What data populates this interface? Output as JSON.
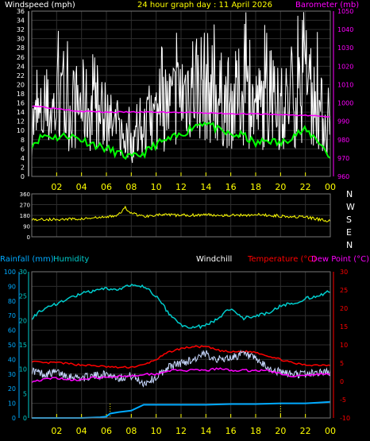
{
  "header": {
    "windspeed_label": "Windspeed (mph)",
    "date_title": "24 hour graph day : 11 April 2026",
    "barometer_label": "Barometer (mb)"
  },
  "middle": {
    "direction_labels": [
      "N",
      "W",
      "S",
      "E",
      "N"
    ]
  },
  "bottom_header": {
    "rainfall_label": "Rainfall (mm)",
    "humidity_label": "Humidity",
    "windchill_label": "Windchill",
    "temperature_label": "Temperature (°C)",
    "dewpoint_label": "Dew Point (°C)"
  },
  "colors": {
    "background": "#000000",
    "grid": "#2e2e2e",
    "hour_ticks": "#ffff00",
    "windspeed": "#ffffff",
    "wind_average": "#00ff00",
    "barometer": "#ff00ff",
    "direction": "#ffff00",
    "rainfall": "#00aaff",
    "humidity": "#00cccc",
    "windchill": "#c8d8ff",
    "temperature": "#ff0000",
    "dewpoint": "#ff00ff",
    "rain_axis": "#00aaff",
    "humidity_axis": "#00cccc",
    "temp_axis": "#ff0000"
  },
  "chart_data": [
    {
      "type": "line",
      "id": "wind_baro",
      "x_ticks": [
        "02",
        "04",
        "06",
        "08",
        "10",
        "12",
        "14",
        "16",
        "18",
        "20",
        "22",
        "00"
      ],
      "left_axis": {
        "label": "Windspeed (mph)",
        "ticks": [
          0,
          2,
          4,
          6,
          8,
          10,
          12,
          14,
          16,
          18,
          20,
          22,
          24,
          26,
          28,
          30,
          32,
          34,
          36
        ],
        "ylim": [
          0,
          36
        ]
      },
      "right_axis": {
        "label": "Barometer (mb)",
        "ticks": [
          960,
          970,
          980,
          990,
          1000,
          1010,
          1020,
          1030,
          1040,
          1050
        ],
        "ylim": [
          960,
          1050
        ]
      },
      "series": [
        {
          "name": "Windspeed (mph)",
          "axis": "left",
          "color": "#ffffff",
          "x": [
            0,
            1,
            2,
            3,
            4,
            5,
            6,
            7,
            8,
            9,
            10,
            11,
            12,
            13,
            14,
            15,
            16,
            17,
            18,
            19,
            20,
            21,
            22,
            23,
            24
          ],
          "y": [
            12,
            14,
            16,
            15,
            17,
            14,
            13,
            10,
            8,
            10,
            14,
            16,
            19,
            22,
            21,
            18,
            17,
            19,
            16,
            17,
            15,
            18,
            20,
            16,
            10
          ]
        },
        {
          "axis": "left",
          "color": "#00ff00",
          "x": [
            0,
            1,
            2,
            3,
            4,
            5,
            6,
            7,
            8,
            9,
            10,
            11,
            12,
            13,
            14,
            15,
            16,
            17,
            18,
            19,
            20,
            21,
            22,
            23,
            24
          ],
          "y": [
            7,
            9,
            8.5,
            9,
            8,
            7,
            6,
            5,
            4,
            5,
            7,
            8,
            9,
            11,
            12,
            10,
            9,
            9,
            7,
            8,
            7,
            9,
            10,
            8,
            4
          ]
        },
        {
          "name": "Barometer (mb)",
          "axis": "right",
          "color": "#ff00ff",
          "x": [
            0,
            2,
            4,
            6,
            8,
            10,
            12,
            14,
            16,
            18,
            20,
            22,
            24
          ],
          "y": [
            998.5,
            997,
            995.5,
            995,
            995,
            995,
            994.8,
            994.5,
            994.2,
            994,
            993.6,
            993.2,
            992.5
          ]
        }
      ]
    },
    {
      "type": "line",
      "id": "direction",
      "left_axis": {
        "ticks": [
          0,
          90,
          180,
          270,
          360
        ],
        "ylim": [
          0,
          360
        ]
      },
      "right_labels": [
        "N",
        "W",
        "S",
        "E",
        "N"
      ],
      "series": [
        {
          "axis": "left",
          "color": "#ffff00",
          "x": [
            0,
            2,
            4,
            6,
            7,
            7.5,
            8,
            9,
            10,
            12,
            14,
            16,
            18,
            20,
            22,
            24
          ],
          "y": [
            145,
            145,
            150,
            165,
            185,
            245,
            200,
            170,
            185,
            180,
            185,
            180,
            185,
            175,
            165,
            130
          ]
        }
      ]
    },
    {
      "type": "line",
      "id": "rain_humidity_temp",
      "x_ticks": [
        "02",
        "04",
        "06",
        "08",
        "10",
        "12",
        "14",
        "16",
        "18",
        "20",
        "22",
        "00"
      ],
      "rain_axis": {
        "label": "Rainfall (mm)",
        "ticks": [
          0,
          10,
          20,
          30,
          40,
          50,
          60,
          70,
          80,
          90,
          100
        ],
        "ylim": [
          0,
          100
        ]
      },
      "humidity_axis": {
        "label": "Humidity",
        "ticks": [
          0,
          5,
          10,
          15,
          20,
          25,
          30
        ],
        "ylim": [
          0,
          30
        ]
      },
      "temp_axis": {
        "label": "Temperature (°C)",
        "ticks": [
          -10,
          -5,
          0,
          5,
          10,
          15,
          20,
          25,
          30
        ],
        "ylim": [
          -10,
          30
        ]
      },
      "series": [
        {
          "name": "Humidity",
          "axis": "humidity",
          "color": "#00cccc",
          "x": [
            0,
            1,
            2,
            3,
            4,
            5,
            6,
            7,
            8,
            9,
            10,
            11,
            12,
            13,
            14,
            15,
            16,
            17,
            18,
            19,
            20,
            21,
            22,
            23,
            24
          ],
          "y": [
            20.5,
            22.5,
            23.5,
            24.5,
            25.5,
            26,
            26.5,
            26.5,
            27.2,
            27,
            25,
            21.5,
            19,
            18.5,
            19,
            20.5,
            22.5,
            20.5,
            21,
            21.5,
            23,
            23.5,
            24.5,
            25,
            26
          ]
        },
        {
          "name": "Temperature (°C)",
          "axis": "temp",
          "color": "#ff0000",
          "x": [
            0,
            1,
            2,
            3,
            4,
            5,
            6,
            7,
            8,
            9,
            10,
            11,
            12,
            13,
            14,
            15,
            16,
            17,
            18,
            19,
            20,
            21,
            22,
            23,
            24
          ],
          "y": [
            5.5,
            5,
            5.2,
            4.8,
            4.5,
            4.3,
            4,
            3.8,
            3.9,
            4.5,
            6,
            8,
            9,
            9.5,
            9.5,
            8.5,
            8,
            8.2,
            8,
            7,
            6,
            5,
            4.5,
            4.5,
            4.5
          ]
        },
        {
          "name": "Windchill",
          "axis": "temp",
          "color": "#c8d8ff",
          "x": [
            0,
            1,
            2,
            3,
            4,
            5,
            6,
            7,
            8,
            9,
            10,
            11,
            12,
            13,
            14,
            15,
            16,
            17,
            18,
            19,
            20,
            21,
            22,
            23,
            24
          ],
          "y": [
            3,
            2,
            2.5,
            1.5,
            1,
            1.5,
            2,
            1,
            1.5,
            -0.5,
            1,
            4,
            5,
            6,
            7.5,
            6,
            6.5,
            7.5,
            6,
            3.5,
            2.5,
            2,
            2,
            2.5,
            2.5
          ]
        },
        {
          "name": "Dew Point (°C)",
          "axis": "temp",
          "color": "#ff00ff",
          "x": [
            0,
            1,
            2,
            3,
            4,
            5,
            6,
            7,
            8,
            9,
            10,
            11,
            12,
            13,
            14,
            15,
            16,
            17,
            18,
            19,
            20,
            21,
            22,
            23,
            24
          ],
          "y": [
            0,
            0.5,
            1,
            0.5,
            0.5,
            1,
            1,
            1.5,
            1.5,
            2,
            2,
            3,
            3,
            3,
            3,
            3.5,
            3,
            3,
            3,
            3,
            2,
            1.5,
            1.5,
            2,
            2
          ]
        },
        {
          "name": "Rainfall (mm)",
          "axis": "rain",
          "color": "#00aaff",
          "x": [
            0,
            2,
            4,
            5.5,
            6,
            6.3,
            7,
            8,
            9,
            10,
            12,
            14,
            16,
            18,
            20,
            22,
            23,
            24
          ],
          "y": [
            0,
            0,
            0,
            0.5,
            1,
            3,
            4,
            5,
            9,
            9,
            9,
            9,
            9.5,
            9.5,
            10,
            10,
            10.5,
            11
          ]
        }
      ]
    }
  ]
}
